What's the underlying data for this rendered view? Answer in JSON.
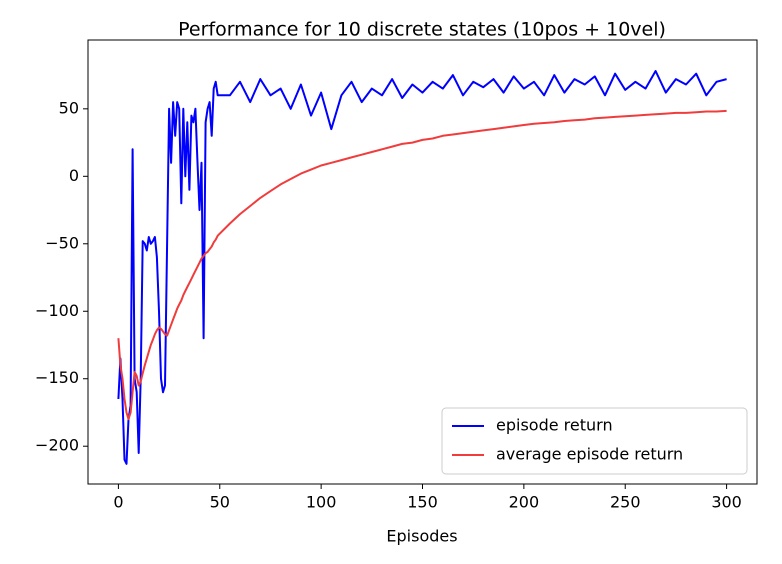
{
  "chart_data": {
    "type": "line",
    "title": "Performance for 10 discrete states (10pos + 10vel)",
    "xlabel": "Episodes",
    "x": [
      0,
      1,
      2,
      3,
      4,
      5,
      6,
      7,
      8,
      9,
      10,
      11,
      12,
      13,
      14,
      15,
      16,
      17,
      18,
      19,
      20,
      21,
      22,
      23,
      24,
      25,
      26,
      27,
      28,
      29,
      30,
      31,
      32,
      33,
      34,
      35,
      36,
      37,
      38,
      39,
      40,
      41,
      42,
      43,
      44,
      45,
      46,
      47,
      48,
      49,
      55,
      60,
      65,
      70,
      75,
      80,
      85,
      90,
      95,
      100,
      105,
      110,
      115,
      120,
      125,
      130,
      135,
      140,
      145,
      150,
      155,
      160,
      165,
      170,
      175,
      180,
      185,
      190,
      195,
      200,
      205,
      210,
      215,
      220,
      225,
      230,
      235,
      240,
      245,
      250,
      255,
      260,
      265,
      270,
      275,
      280,
      285,
      290,
      295,
      300
    ],
    "series": [
      {
        "name": "episode return",
        "color": "#0000ff",
        "values": [
          -165,
          -135,
          -165,
          -210,
          -213,
          -180,
          -170,
          20,
          -150,
          -160,
          -205,
          -150,
          -48,
          -50,
          -55,
          -45,
          -50,
          -48,
          -45,
          -60,
          -100,
          -150,
          -160,
          -155,
          -50,
          50,
          10,
          55,
          30,
          55,
          50,
          -20,
          50,
          0,
          40,
          -10,
          45,
          40,
          50,
          10,
          -25,
          10,
          -120,
          40,
          50,
          55,
          30,
          65,
          70,
          60,
          60,
          70,
          55,
          72,
          60,
          65,
          50,
          68,
          45,
          62,
          35,
          60,
          70,
          55,
          65,
          60,
          72,
          58,
          68,
          62,
          70,
          65,
          75,
          60,
          70,
          66,
          72,
          62,
          74,
          65,
          70,
          60,
          75,
          62,
          72,
          68,
          74,
          60,
          76,
          64,
          70,
          65,
          78,
          62,
          72,
          68,
          76,
          60,
          70,
          72
        ]
      },
      {
        "name": "average episode return",
        "color": "#f03c3c",
        "values": [
          -120,
          -140,
          -150,
          -165,
          -175,
          -180,
          -175,
          -160,
          -145,
          -148,
          -155,
          -152,
          -146,
          -140,
          -135,
          -130,
          -125,
          -121,
          -117,
          -114,
          -112,
          -113,
          -115,
          -117,
          -118,
          -114,
          -110,
          -106,
          -102,
          -98,
          -95,
          -92,
          -88,
          -85,
          -82,
          -79,
          -76,
          -73,
          -70,
          -67,
          -64,
          -61,
          -59,
          -57,
          -56,
          -54,
          -52,
          -49,
          -47,
          -44,
          -35,
          -28,
          -22,
          -16,
          -11,
          -6,
          -2,
          2,
          5,
          8,
          10,
          12,
          14,
          16,
          18,
          20,
          22,
          24,
          25,
          27,
          28,
          30,
          31,
          32,
          33,
          34,
          35,
          36,
          37,
          38,
          39,
          39.5,
          40,
          41,
          41.5,
          42,
          43,
          43.5,
          44,
          44.5,
          45,
          45.5,
          46,
          46.5,
          47,
          47,
          47.5,
          48,
          48,
          48.5
        ]
      }
    ],
    "xlim": [
      -15,
      315
    ],
    "ylim": [
      -228,
      101
    ],
    "xticks": [
      0,
      50,
      100,
      150,
      200,
      250,
      300
    ],
    "yticks": [
      {
        "value": -200,
        "label": "−200"
      },
      {
        "value": -150,
        "label": "−150"
      },
      {
        "value": -100,
        "label": "−100"
      },
      {
        "value": -50,
        "label": "−50"
      },
      0,
      50
    ],
    "legend": "lower right"
  }
}
